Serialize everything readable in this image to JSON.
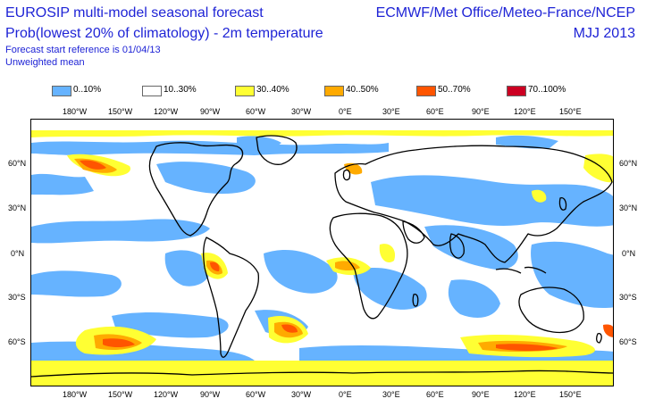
{
  "header": {
    "title_line1": "EUROSIP multi-model seasonal forecast",
    "title_line2": "Prob(lowest 20% of climatology) - 2m temperature",
    "title_line3": "Forecast start reference is 01/04/13",
    "title_line4": "Unweighted mean",
    "centres": "ECMWF/Met Office/Meteo-France/NCEP",
    "season": "MJJ 2013"
  },
  "legend": [
    {
      "label": "0..10%",
      "color": "#66b3ff"
    },
    {
      "label": "10..30%",
      "color": "#ffffff"
    },
    {
      "label": "30..40%",
      "color": "#ffff33"
    },
    {
      "label": "40..50%",
      "color": "#ffaa00"
    },
    {
      "label": "50..70%",
      "color": "#ff5500"
    },
    {
      "label": "70..100%",
      "color": "#cc0022"
    }
  ],
  "axes": {
    "lon_labels": [
      "180°W",
      "150°W",
      "120°W",
      "90°W",
      "60°W",
      "30°W",
      "0°E",
      "30°E",
      "60°E",
      "90°E",
      "120°E",
      "150°E"
    ],
    "lat_labels": [
      "60°N",
      "30°N",
      "0°N",
      "30°S",
      "60°S"
    ]
  }
}
